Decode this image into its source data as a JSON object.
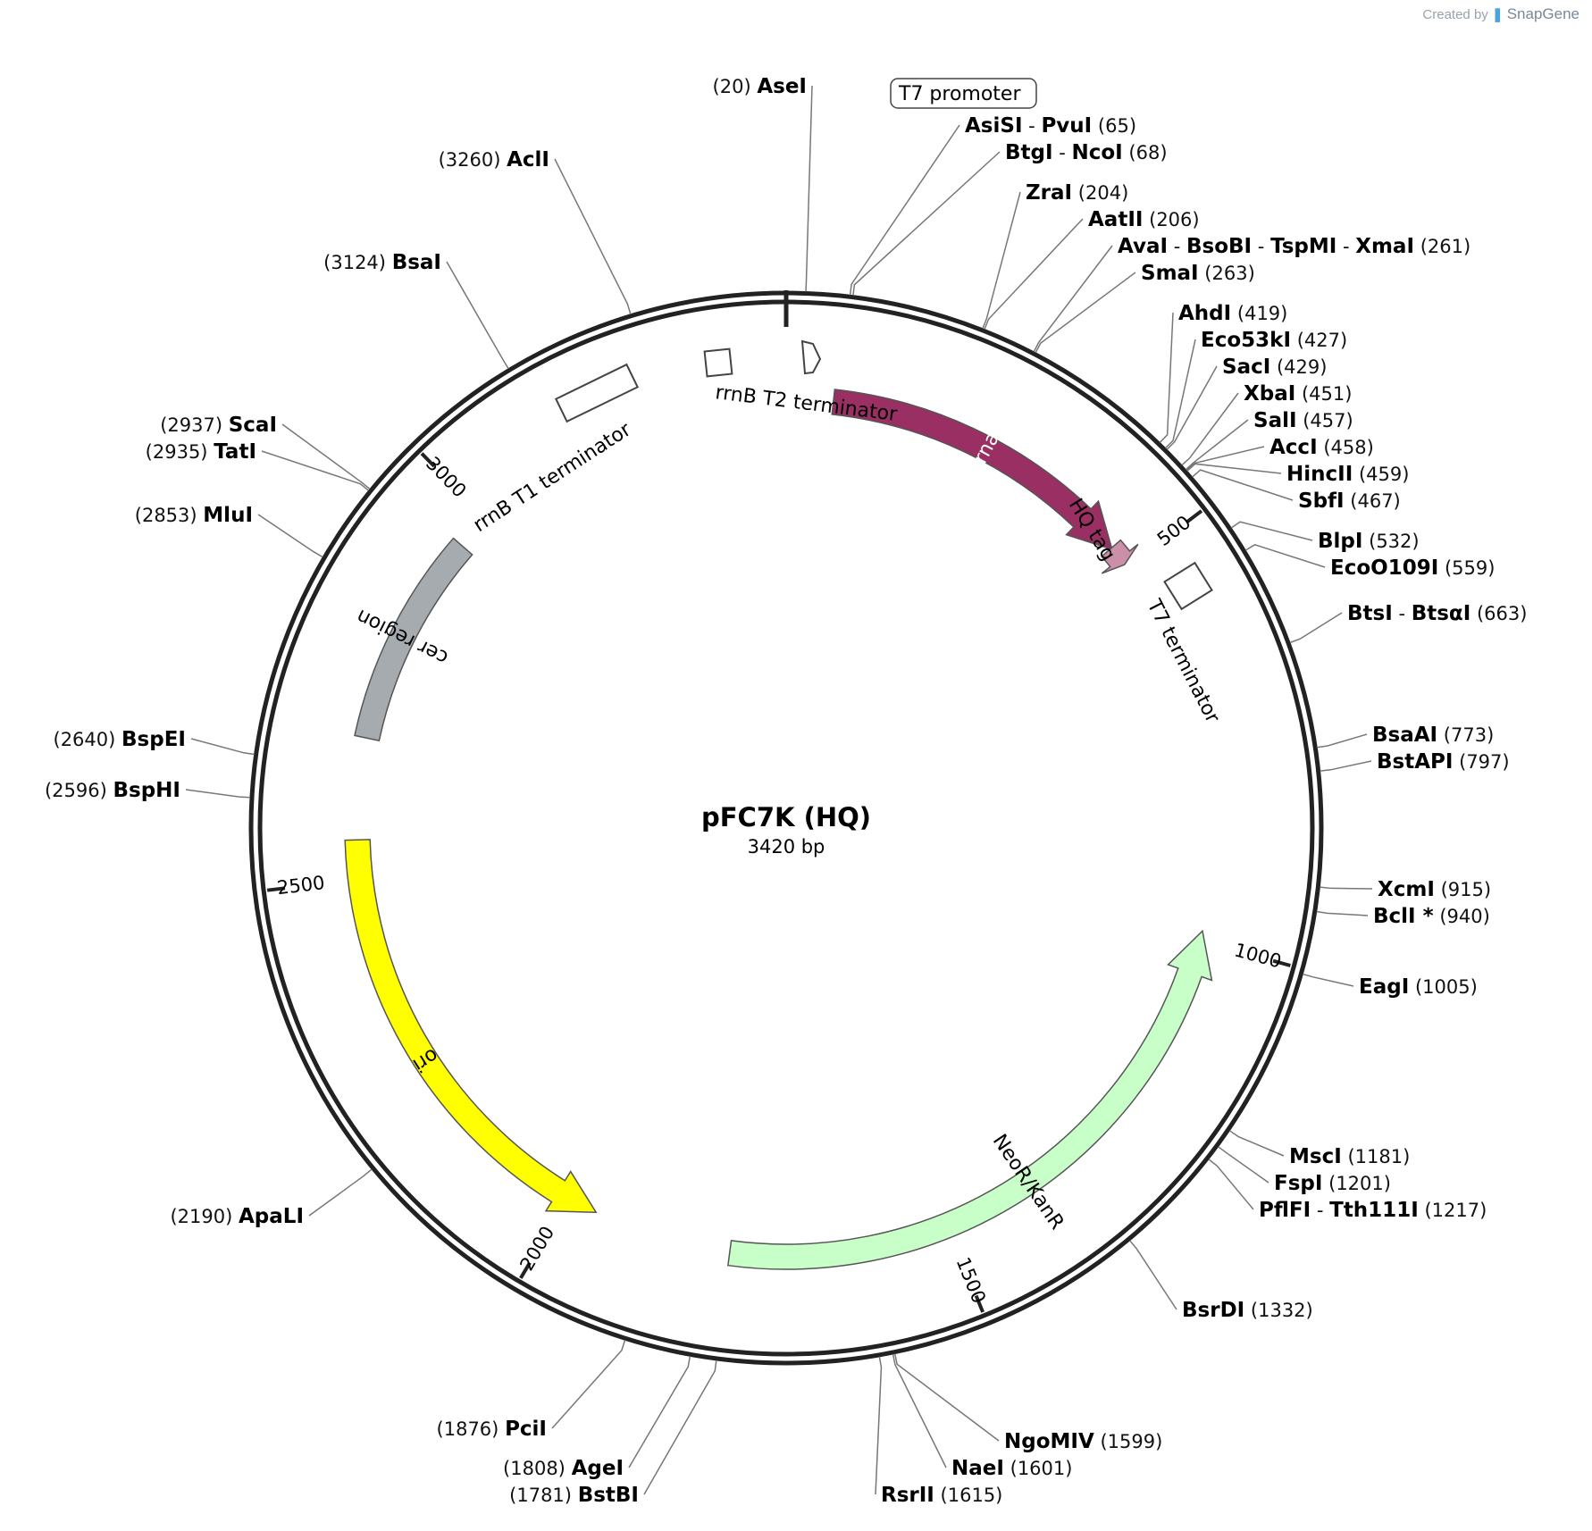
{
  "credit": {
    "prefix": "Created by",
    "brand": "SnapGene"
  },
  "plasmid": {
    "name": "pFC7K (HQ)",
    "length_label": "3420 bp",
    "length": 3420
  },
  "ticks": [
    {
      "pos": 500,
      "label": "500"
    },
    {
      "pos": 1000,
      "label": "1000"
    },
    {
      "pos": 1500,
      "label": "1500"
    },
    {
      "pos": 2000,
      "label": "2000"
    },
    {
      "pos": 2500,
      "label": "2500"
    },
    {
      "pos": 3000,
      "label": "3000"
    }
  ],
  "features": [
    {
      "name": "barnase",
      "start": 60,
      "end": 470,
      "dir": "cw",
      "color": "#992f62",
      "text_color": "#ffffff",
      "label_inside": true
    },
    {
      "name": "HQ tag",
      "start": 468,
      "end": 495,
      "dir": "cw",
      "color": "#cc8fa8",
      "text_color": "#000000",
      "label_inside": false
    },
    {
      "name": "NeoR/KanR",
      "start": 987,
      "end": 1782,
      "dir": "ccw",
      "color": "#c8ffc8",
      "text_color": "#000000",
      "label_inside": true
    },
    {
      "name": "ori",
      "start": 1960,
      "end": 2550,
      "dir": "ccw",
      "color": "#ffff00",
      "text_color": "#000000",
      "label_inside": true
    },
    {
      "name": "cer region",
      "start": 2680,
      "end": 2955,
      "dir": "none",
      "color": "#a6abb0",
      "text_color": "#000000",
      "label_inside": true
    }
  ],
  "small_features": [
    {
      "name": "T7 promoter",
      "boxed_label": true
    },
    {
      "name": "rrnB T2 terminator"
    },
    {
      "name": "rrnB T1 terminator"
    },
    {
      "name": "T7 terminator"
    }
  ],
  "enzymes": [
    {
      "names": [
        "AseI"
      ],
      "pos": "(20)",
      "pos_num": 20
    },
    {
      "names": [
        "AsiSI",
        "PvuI"
      ],
      "pos": "(65)",
      "pos_num": 65
    },
    {
      "names": [
        "BtgI",
        "NcoI"
      ],
      "pos": "(68)",
      "pos_num": 68
    },
    {
      "names": [
        "ZraI"
      ],
      "pos": "(204)",
      "pos_num": 204
    },
    {
      "names": [
        "AatII"
      ],
      "pos": "(206)",
      "pos_num": 206
    },
    {
      "names": [
        "AvaI",
        "BsoBI",
        "TspMI",
        "XmaI"
      ],
      "pos": "(261)",
      "pos_num": 261
    },
    {
      "names": [
        "SmaI"
      ],
      "pos": "(263)",
      "pos_num": 263
    },
    {
      "names": [
        "AhdI"
      ],
      "pos": "(419)",
      "pos_num": 419
    },
    {
      "names": [
        "Eco53kI"
      ],
      "pos": "(427)",
      "pos_num": 427
    },
    {
      "names": [
        "SacI"
      ],
      "pos": "(429)",
      "pos_num": 429
    },
    {
      "names": [
        "XbaI"
      ],
      "pos": "(451)",
      "pos_num": 451
    },
    {
      "names": [
        "SalI"
      ],
      "pos": "(457)",
      "pos_num": 457
    },
    {
      "names": [
        "AccI"
      ],
      "pos": "(458)",
      "pos_num": 458
    },
    {
      "names": [
        "HincII"
      ],
      "pos": "(459)",
      "pos_num": 459
    },
    {
      "names": [
        "SbfI"
      ],
      "pos": "(467)",
      "pos_num": 467
    },
    {
      "names": [
        "BlpI"
      ],
      "pos": "(532)",
      "pos_num": 532
    },
    {
      "names": [
        "EcoO109I"
      ],
      "pos": "(559)",
      "pos_num": 559
    },
    {
      "names": [
        "BtsI",
        "BtsαI"
      ],
      "pos": "(663)",
      "pos_num": 663
    },
    {
      "names": [
        "BsaAI"
      ],
      "pos": "(773)",
      "pos_num": 773
    },
    {
      "names": [
        "BstAPI"
      ],
      "pos": "(797)",
      "pos_num": 797
    },
    {
      "names": [
        "XcmI"
      ],
      "pos": "(915)",
      "pos_num": 915
    },
    {
      "names": [
        "BclI *"
      ],
      "pos": "(940)",
      "pos_num": 940,
      "gray": true
    },
    {
      "names": [
        "EagI"
      ],
      "pos": "(1005)",
      "pos_num": 1005
    },
    {
      "names": [
        "MscI"
      ],
      "pos": "(1181)",
      "pos_num": 1181
    },
    {
      "names": [
        "FspI"
      ],
      "pos": "(1201)",
      "pos_num": 1201
    },
    {
      "names": [
        "PflFI",
        "Tth111I"
      ],
      "pos": "(1217)",
      "pos_num": 1217
    },
    {
      "names": [
        "BsrDI"
      ],
      "pos": "(1332)",
      "pos_num": 1332
    },
    {
      "names": [
        "NgoMIV"
      ],
      "pos": "(1599)",
      "pos_num": 1599
    },
    {
      "names": [
        "NaeI"
      ],
      "pos": "(1601)",
      "pos_num": 1601
    },
    {
      "names": [
        "RsrII"
      ],
      "pos": "(1615)",
      "pos_num": 1615
    },
    {
      "names": [
        "BstBI"
      ],
      "pos": "(1781)",
      "pos_num": 1781
    },
    {
      "names": [
        "AgeI"
      ],
      "pos": "(1808)",
      "pos_num": 1808
    },
    {
      "names": [
        "PciI"
      ],
      "pos": "(1876)",
      "pos_num": 1876
    },
    {
      "names": [
        "ApaLI"
      ],
      "pos": "(2190)",
      "pos_num": 2190
    },
    {
      "names": [
        "BspHI"
      ],
      "pos": "(2596)",
      "pos_num": 2596
    },
    {
      "names": [
        "BspEI"
      ],
      "pos": "(2640)",
      "pos_num": 2640
    },
    {
      "names": [
        "MluI"
      ],
      "pos": "(2853)",
      "pos_num": 2853
    },
    {
      "names": [
        "TatI"
      ],
      "pos": "(2935)",
      "pos_num": 2935
    },
    {
      "names": [
        "ScaI"
      ],
      "pos": "(2937)",
      "pos_num": 2937
    },
    {
      "names": [
        "BsaI"
      ],
      "pos": "(3124)",
      "pos_num": 3124
    },
    {
      "names": [
        "AclI"
      ],
      "pos": "(3260)",
      "pos_num": 3260
    }
  ]
}
